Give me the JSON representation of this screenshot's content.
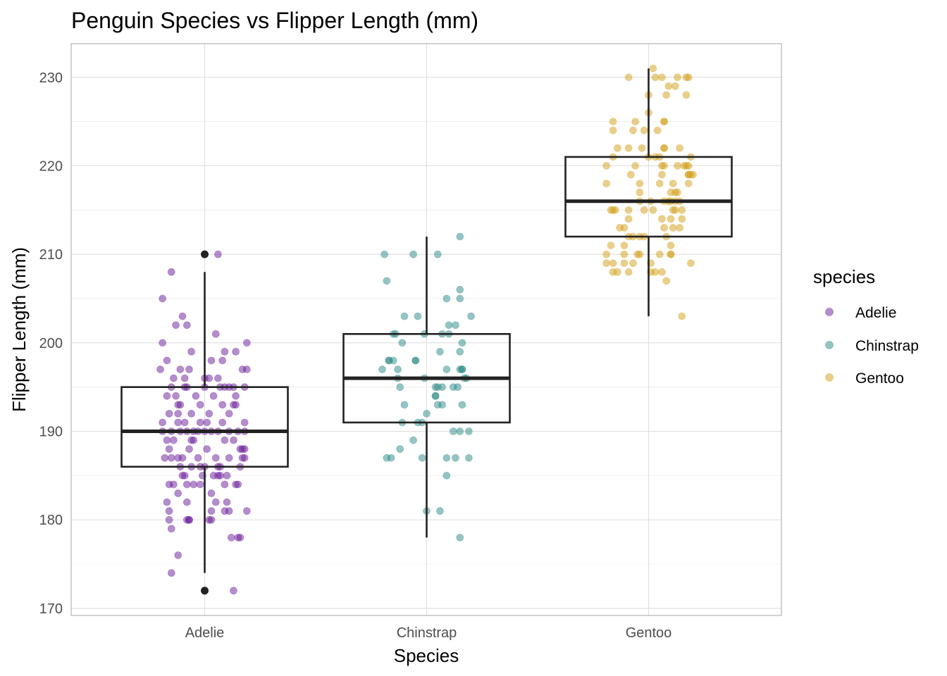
{
  "chart_data": {
    "type": "box",
    "title": "Penguin Species vs Flipper Length (mm)",
    "xlabel": "Species",
    "ylabel": "Flipper Length (mm)",
    "categories": [
      "Adelie",
      "Chinstrap",
      "Gentoo"
    ],
    "ylim": [
      169.2,
      233.8
    ],
    "yticks": [
      170,
      180,
      190,
      200,
      210,
      220,
      230
    ],
    "grid": true,
    "legend": {
      "title": "species",
      "position": "right",
      "entries": [
        "Adelie",
        "Chinstrap",
        "Gentoo"
      ]
    },
    "series": [
      {
        "name": "Adelie",
        "color": "#6a1b9a",
        "box": {
          "min": 174,
          "q1": 186,
          "median": 190,
          "q3": 195,
          "max": 208,
          "outliers": [
            210,
            172
          ]
        },
        "points": [
          [
            -0.19,
            205
          ],
          [
            0.06,
            210
          ],
          [
            -0.15,
            208
          ],
          [
            -0.1,
            203
          ],
          [
            -0.13,
            202
          ],
          [
            -0.08,
            202
          ],
          [
            -0.19,
            200
          ],
          [
            0.05,
            201
          ],
          [
            -0.06,
            199
          ],
          [
            0.09,
            199
          ],
          [
            0.14,
            199
          ],
          [
            0.19,
            200
          ],
          [
            0.03,
            198
          ],
          [
            0.08,
            198
          ],
          [
            -0.17,
            198
          ],
          [
            -0.2,
            197
          ],
          [
            -0.11,
            197
          ],
          [
            -0.07,
            197
          ],
          [
            0.17,
            197
          ],
          [
            0.19,
            197
          ],
          [
            -0.14,
            196
          ],
          [
            -0.09,
            196
          ],
          [
            0.0,
            196
          ],
          [
            0.02,
            196
          ],
          [
            0.06,
            196
          ],
          [
            -0.15,
            195
          ],
          [
            -0.08,
            195
          ],
          [
            -0.09,
            195
          ],
          [
            0.0,
            195
          ],
          [
            0.07,
            195
          ],
          [
            0.09,
            195
          ],
          [
            0.11,
            195
          ],
          [
            0.13,
            195
          ],
          [
            0.18,
            195
          ],
          [
            -0.17,
            194
          ],
          [
            -0.13,
            194
          ],
          [
            -0.04,
            194
          ],
          [
            0.04,
            194
          ],
          [
            0.14,
            194
          ],
          [
            -0.12,
            193
          ],
          [
            -0.11,
            193
          ],
          [
            -0.02,
            193
          ],
          [
            0.08,
            193
          ],
          [
            0.13,
            193
          ],
          [
            0.14,
            193
          ],
          [
            -0.16,
            192
          ],
          [
            -0.12,
            192
          ],
          [
            -0.06,
            192
          ],
          [
            0.02,
            192
          ],
          [
            0.11,
            192
          ],
          [
            -0.19,
            191
          ],
          [
            -0.12,
            191
          ],
          [
            -0.09,
            191
          ],
          [
            -0.02,
            191
          ],
          [
            0.01,
            191
          ],
          [
            0.08,
            191
          ],
          [
            0.18,
            191
          ],
          [
            -0.19,
            190
          ],
          [
            -0.15,
            190
          ],
          [
            -0.11,
            190
          ],
          [
            -0.08,
            190
          ],
          [
            -0.05,
            190
          ],
          [
            -0.03,
            190
          ],
          [
            0.0,
            190
          ],
          [
            0.03,
            190
          ],
          [
            0.06,
            190
          ],
          [
            0.11,
            190
          ],
          [
            0.15,
            190
          ],
          [
            0.18,
            190
          ],
          [
            -0.17,
            189
          ],
          [
            -0.14,
            189
          ],
          [
            -0.06,
            189
          ],
          [
            -0.05,
            189
          ],
          [
            0.09,
            189
          ],
          [
            0.13,
            189
          ],
          [
            -0.16,
            188
          ],
          [
            -0.07,
            188
          ],
          [
            0.01,
            188
          ],
          [
            0.16,
            188
          ],
          [
            0.17,
            188
          ],
          [
            0.18,
            188
          ],
          [
            -0.18,
            187
          ],
          [
            -0.15,
            187
          ],
          [
            -0.12,
            187
          ],
          [
            -0.1,
            187
          ],
          [
            -0.03,
            187
          ],
          [
            0.05,
            187
          ],
          [
            0.11,
            187
          ],
          [
            0.17,
            187
          ],
          [
            0.18,
            187
          ],
          [
            -0.11,
            186
          ],
          [
            -0.06,
            186
          ],
          [
            -0.02,
            186
          ],
          [
            0.0,
            186
          ],
          [
            0.06,
            186
          ],
          [
            0.07,
            186
          ],
          [
            0.16,
            186
          ],
          [
            -0.1,
            185
          ],
          [
            -0.09,
            185
          ],
          [
            -0.01,
            185
          ],
          [
            0.04,
            185
          ],
          [
            0.06,
            185
          ],
          [
            0.07,
            185
          ],
          [
            0.1,
            185
          ],
          [
            -0.16,
            184
          ],
          [
            -0.14,
            184
          ],
          [
            -0.08,
            184
          ],
          [
            -0.05,
            184
          ],
          [
            -0.02,
            184
          ],
          [
            0.09,
            184
          ],
          [
            0.14,
            184
          ],
          [
            0.15,
            184
          ],
          [
            -0.12,
            183
          ],
          [
            0.03,
            183
          ],
          [
            -0.17,
            182
          ],
          [
            -0.08,
            182
          ],
          [
            0.05,
            182
          ],
          [
            0.1,
            182
          ],
          [
            -0.16,
            181
          ],
          [
            0.03,
            181
          ],
          [
            0.09,
            181
          ],
          [
            0.11,
            181
          ],
          [
            0.19,
            181
          ],
          [
            -0.16,
            180
          ],
          [
            -0.07,
            180
          ],
          [
            -0.07,
            180
          ],
          [
            -0.08,
            180
          ],
          [
            0.02,
            180
          ],
          [
            0.03,
            180
          ],
          [
            -0.15,
            179
          ],
          [
            0.12,
            178
          ],
          [
            0.15,
            178
          ],
          [
            0.16,
            178
          ],
          [
            -0.12,
            176
          ],
          [
            -0.15,
            174
          ],
          [
            0.13,
            172
          ]
        ]
      },
      {
        "name": "Chinstrap",
        "color": "#2a8a87",
        "box": {
          "min": 178,
          "q1": 191,
          "median": 196,
          "q3": 201,
          "max": 212,
          "outliers": []
        },
        "points": [
          [
            0.15,
            212
          ],
          [
            -0.19,
            210
          ],
          [
            -0.06,
            210
          ],
          [
            0.05,
            210
          ],
          [
            -0.18,
            207
          ],
          [
            0.15,
            206
          ],
          [
            0.09,
            205
          ],
          [
            0.15,
            205
          ],
          [
            -0.1,
            203
          ],
          [
            -0.04,
            203
          ],
          [
            0.2,
            203
          ],
          [
            0.1,
            202
          ],
          [
            0.13,
            202
          ],
          [
            -0.15,
            201
          ],
          [
            -0.14,
            201
          ],
          [
            -0.01,
            201
          ],
          [
            0.07,
            201
          ],
          [
            0.1,
            201
          ],
          [
            -0.11,
            200
          ],
          [
            0.16,
            200
          ],
          [
            0.06,
            199
          ],
          [
            0.15,
            199
          ],
          [
            -0.17,
            198
          ],
          [
            -0.15,
            198
          ],
          [
            -0.05,
            198
          ],
          [
            -0.05,
            198
          ],
          [
            -0.17,
            198
          ],
          [
            -0.2,
            197
          ],
          [
            -0.13,
            197
          ],
          [
            0.15,
            197
          ],
          [
            0.16,
            197
          ],
          [
            0.16,
            197
          ],
          [
            0.09,
            197
          ],
          [
            -0.13,
            196
          ],
          [
            -0.01,
            196
          ],
          [
            0.17,
            196
          ],
          [
            0.18,
            196
          ],
          [
            -0.12,
            195
          ],
          [
            0.05,
            195
          ],
          [
            0.07,
            195
          ],
          [
            0.12,
            195
          ],
          [
            0.14,
            195
          ],
          [
            0.04,
            195
          ],
          [
            0.04,
            194
          ],
          [
            0.04,
            194
          ],
          [
            -0.1,
            193
          ],
          [
            0.05,
            193
          ],
          [
            0.07,
            193
          ],
          [
            0.16,
            193
          ],
          [
            0.0,
            192
          ],
          [
            -0.11,
            191
          ],
          [
            -0.04,
            191
          ],
          [
            -0.02,
            191
          ],
          [
            0.12,
            190
          ],
          [
            0.15,
            190
          ],
          [
            0.19,
            190
          ],
          [
            -0.06,
            189
          ],
          [
            -0.12,
            188
          ],
          [
            -0.18,
            187
          ],
          [
            -0.16,
            187
          ],
          [
            -0.02,
            187
          ],
          [
            0.09,
            187
          ],
          [
            0.13,
            187
          ],
          [
            0.19,
            187
          ],
          [
            0.09,
            185
          ],
          [
            0.0,
            181
          ],
          [
            0.06,
            181
          ],
          [
            0.15,
            178
          ]
        ]
      },
      {
        "name": "Gentoo",
        "color": "#d4a017",
        "box": {
          "min": 203,
          "q1": 212,
          "median": 216,
          "q3": 221,
          "max": 231,
          "outliers": []
        },
        "points": [
          [
            0.02,
            231
          ],
          [
            -0.09,
            230
          ],
          [
            0.03,
            230
          ],
          [
            0.06,
            230
          ],
          [
            0.13,
            230
          ],
          [
            0.17,
            230
          ],
          [
            0.18,
            230
          ],
          [
            0.09,
            229
          ],
          [
            0.12,
            229
          ],
          [
            0.0,
            228
          ],
          [
            0.08,
            228
          ],
          [
            0.17,
            228
          ],
          [
            -0.16,
            225
          ],
          [
            -0.06,
            225
          ],
          [
            0.07,
            225
          ],
          [
            0.07,
            225
          ],
          [
            0.0,
            226
          ],
          [
            -0.16,
            224
          ],
          [
            -0.07,
            224
          ],
          [
            -0.02,
            224
          ],
          [
            0.04,
            224
          ],
          [
            -0.14,
            222
          ],
          [
            -0.09,
            222
          ],
          [
            -0.03,
            222
          ],
          [
            0.07,
            222
          ],
          [
            0.07,
            222
          ],
          [
            0.14,
            222
          ],
          [
            -0.16,
            221
          ],
          [
            0.0,
            221
          ],
          [
            0.03,
            221
          ],
          [
            0.05,
            221
          ],
          [
            0.19,
            221
          ],
          [
            -0.19,
            220
          ],
          [
            -0.06,
            220
          ],
          [
            0.06,
            220
          ],
          [
            0.07,
            220
          ],
          [
            0.13,
            220
          ],
          [
            0.16,
            220
          ],
          [
            0.17,
            220
          ],
          [
            0.18,
            220
          ],
          [
            -0.08,
            219
          ],
          [
            0.06,
            219
          ],
          [
            0.18,
            219
          ],
          [
            0.18,
            219
          ],
          [
            0.19,
            219
          ],
          [
            0.2,
            219
          ],
          [
            -0.19,
            218
          ],
          [
            -0.04,
            218
          ],
          [
            0.05,
            218
          ],
          [
            0.11,
            218
          ],
          [
            0.18,
            218
          ],
          [
            -0.04,
            217
          ],
          [
            0.1,
            217
          ],
          [
            0.13,
            217
          ],
          [
            0.12,
            217
          ],
          [
            -0.04,
            216
          ],
          [
            0.01,
            216
          ],
          [
            0.07,
            216
          ],
          [
            0.09,
            216
          ],
          [
            0.1,
            216
          ],
          [
            0.12,
            216
          ],
          [
            0.14,
            216
          ],
          [
            -0.17,
            215
          ],
          [
            -0.15,
            215
          ],
          [
            -0.16,
            215
          ],
          [
            -0.09,
            215
          ],
          [
            -0.02,
            215
          ],
          [
            0.02,
            215
          ],
          [
            0.11,
            215
          ],
          [
            0.12,
            215
          ],
          [
            0.15,
            215
          ],
          [
            -0.09,
            214
          ],
          [
            0.06,
            214
          ],
          [
            0.1,
            214
          ],
          [
            0.15,
            214
          ],
          [
            -0.11,
            213
          ],
          [
            -0.13,
            213
          ],
          [
            0.07,
            213
          ],
          [
            0.11,
            213
          ],
          [
            0.14,
            213
          ],
          [
            -0.09,
            212
          ],
          [
            -0.07,
            212
          ],
          [
            -0.04,
            212
          ],
          [
            -0.02,
            212
          ],
          [
            0.08,
            212
          ],
          [
            -0.17,
            211
          ],
          [
            -0.11,
            211
          ],
          [
            0.1,
            211
          ],
          [
            -0.19,
            210
          ],
          [
            -0.11,
            210
          ],
          [
            -0.05,
            210
          ],
          [
            -0.04,
            210
          ],
          [
            0.05,
            210
          ],
          [
            0.1,
            210
          ],
          [
            0.1,
            210
          ],
          [
            -0.19,
            209
          ],
          [
            -0.16,
            209
          ],
          [
            -0.11,
            209
          ],
          [
            -0.07,
            209
          ],
          [
            0.01,
            209
          ],
          [
            0.19,
            209
          ],
          [
            -0.16,
            208
          ],
          [
            -0.14,
            208
          ],
          [
            -0.09,
            208
          ],
          [
            0.01,
            208
          ],
          [
            0.06,
            208
          ],
          [
            0.03,
            208
          ],
          [
            0.08,
            207
          ],
          [
            0.15,
            203
          ]
        ]
      }
    ]
  }
}
